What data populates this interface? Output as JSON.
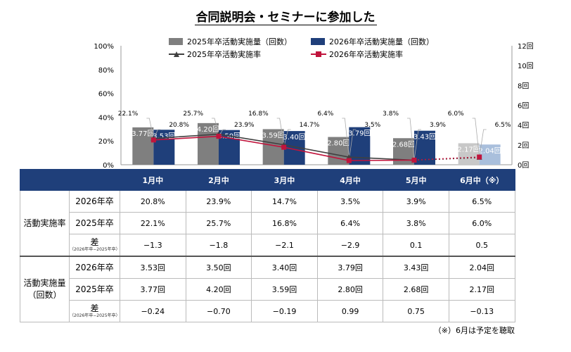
{
  "title": "合同説明会・セミナーに参加した",
  "chart_data": {
    "type": "bar",
    "categories": [
      "1月中",
      "2月中",
      "3月中",
      "4月中",
      "5月中",
      "6月中（※）"
    ],
    "bar_series": [
      {
        "name": "2025年卒活動実施量（回数）",
        "values": [
          3.77,
          4.2,
          3.59,
          2.8,
          2.68,
          2.17
        ],
        "labels": [
          "3.77回",
          "4.20回",
          "3.59回",
          "2.80回",
          "2.68回",
          "2.17回"
        ],
        "color": "#7f7f7f"
      },
      {
        "name": "2026年卒活動実施量（回数）",
        "values": [
          3.53,
          3.5,
          3.4,
          3.79,
          3.43,
          2.04
        ],
        "labels": [
          "3.53回",
          "3.50回",
          "3.40回",
          "3.79回",
          "3.43回",
          "2.04回"
        ],
        "color": "#1f3f7a"
      }
    ],
    "line_series": [
      {
        "name": "2025年卒活動実施率",
        "values": [
          22.1,
          25.7,
          16.8,
          6.4,
          3.8,
          6.0
        ],
        "labels": [
          "22.1%",
          "25.7%",
          "16.8%",
          "6.4%",
          "3.8%",
          "6.0%"
        ],
        "color": "#404040",
        "marker": "triangle"
      },
      {
        "name": "2026年卒活動実施率",
        "values": [
          20.8,
          23.9,
          14.7,
          3.5,
          3.9,
          6.5
        ],
        "labels": [
          "20.8%",
          "23.9%",
          "14.7%",
          "3.5%",
          "3.9%",
          "6.5%"
        ],
        "color": "#c0143c",
        "marker": "square"
      }
    ],
    "projected_category_index": 5,
    "y_left": {
      "min": 0,
      "max": 100,
      "ticks": [
        "0%",
        "20%",
        "40%",
        "60%",
        "80%",
        "100%"
      ]
    },
    "y_right": {
      "min": 0,
      "max": 12,
      "ticks": [
        "0回",
        "2回",
        "4回",
        "6回",
        "8回",
        "10回",
        "12回"
      ]
    },
    "legend_position": "top"
  },
  "table": {
    "headers": [
      "1月中",
      "2月中",
      "3月中",
      "4月中",
      "5月中",
      "6月中（※）"
    ],
    "groups": [
      {
        "label": "活動実施率",
        "rows": [
          {
            "label": "2026年卒",
            "sub": "",
            "cells": [
              "20.8%",
              "23.9%",
              "14.7%",
              "3.5%",
              "3.9%",
              "6.5%"
            ]
          },
          {
            "label": "2025年卒",
            "sub": "",
            "cells": [
              "22.1%",
              "25.7%",
              "16.8%",
              "6.4%",
              "3.8%",
              "6.0%"
            ]
          },
          {
            "label": "差",
            "sub": "（2026年卒−2025年卒）",
            "cells": [
              "−1.3",
              "−1.8",
              "−2.1",
              "−2.9",
              "0.1",
              "0.5"
            ]
          }
        ]
      },
      {
        "label": "活動実施量（回数）",
        "rows": [
          {
            "label": "2026年卒",
            "sub": "",
            "cells": [
              "3.53回",
              "3.50回",
              "3.40回",
              "3.79回",
              "3.43回",
              "2.04回"
            ]
          },
          {
            "label": "2025年卒",
            "sub": "",
            "cells": [
              "3.77回",
              "4.20回",
              "3.59回",
              "2.80回",
              "2.68回",
              "2.17回"
            ]
          },
          {
            "label": "差",
            "sub": "（2026年卒−2025年卒）",
            "cells": [
              "−0.24",
              "−0.70",
              "−0.19",
              "0.99",
              "0.75",
              "−0.13"
            ]
          }
        ]
      }
    ]
  },
  "note": "（※）6月は予定を聴取"
}
